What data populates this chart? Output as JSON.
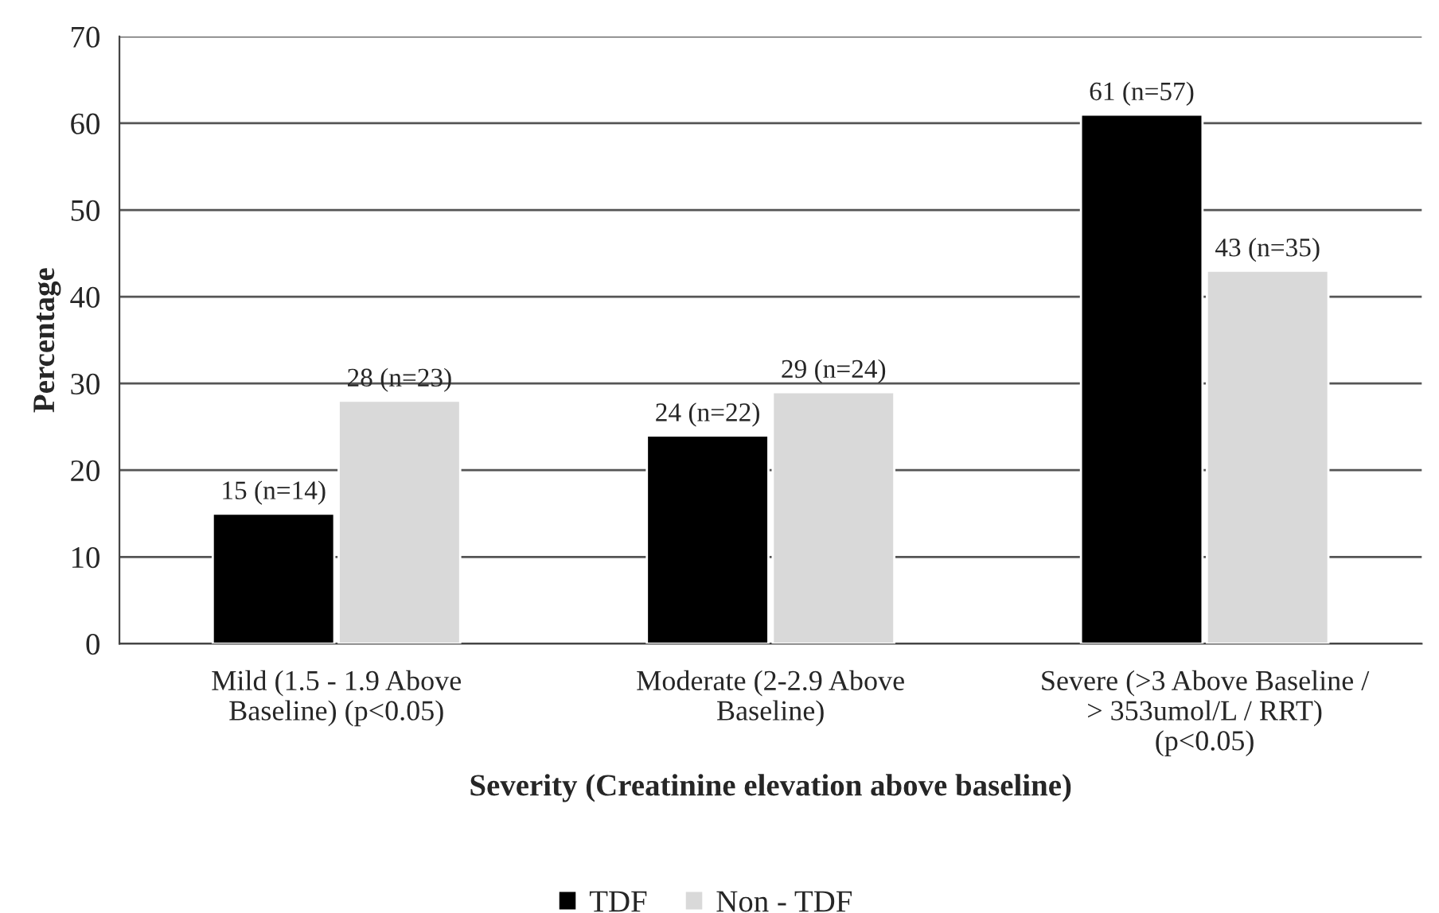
{
  "chart_data": {
    "type": "bar",
    "xlabel": "Severity (Creatinine elevation above baseline)",
    "ylabel": "Percentage",
    "categories": [
      "Mild (1.5 - 1.9 Above\nBaseline) (p<0.05)",
      "Moderate (2-2.9 Above\nBaseline)",
      "Severe (>3 Above Baseline /\n> 353umol/L / RRT)\n(p<0.05)"
    ],
    "series": [
      {
        "name": "TDF",
        "color": "#000000",
        "values": [
          15,
          24,
          61
        ],
        "value_labels": [
          "15 (n=14)",
          "24 (n=22)",
          "61 (n=57)"
        ]
      },
      {
        "name": "Non - TDF",
        "color": "#d9d9d9",
        "values": [
          28,
          29,
          43
        ],
        "value_labels": [
          "28 (n=23)",
          "29 (n=24)",
          "43 (n=35)"
        ]
      }
    ],
    "ylim": [
      0,
      70
    ],
    "yticks": [
      0,
      10,
      20,
      30,
      40,
      50,
      60,
      70
    ],
    "grid": "y",
    "legend": "bottom"
  }
}
